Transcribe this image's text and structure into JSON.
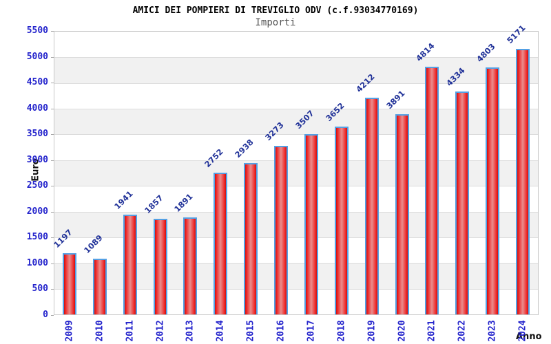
{
  "chart_data": {
    "type": "bar",
    "title": "AMICI DEI POMPIERI DI TREVIGLIO ODV (c.f.93034770169)",
    "subtitle": "Importi",
    "ylabel": "Euro",
    "xlabel": "Anno",
    "categories": [
      "2009",
      "2010",
      "2011",
      "2012",
      "2013",
      "2014",
      "2015",
      "2016",
      "2017",
      "2018",
      "2019",
      "2020",
      "2021",
      "2022",
      "2023",
      "2024"
    ],
    "values": [
      1197,
      1089,
      1941,
      1857,
      1891,
      2752,
      2938,
      3273,
      3507,
      3652,
      4212,
      3891,
      4814,
      4334,
      4803,
      5171
    ],
    "yticks": [
      0,
      500,
      1000,
      1500,
      2000,
      2500,
      3000,
      3500,
      4000,
      4500,
      5000,
      5500
    ],
    "ylim": [
      0,
      5500
    ],
    "grid": "horizontal-alternating-bands",
    "legend_position": "none",
    "value_labels_rotation_deg": -45,
    "xtick_rotation_deg": -90,
    "colors": {
      "bar_edge_red": "#c81212",
      "bar_bright_red": "#ee2424",
      "bar_center_light": "#ea8e8e",
      "bar_border_blue": "#54a0e4",
      "axis_tick_label": "#2424cc",
      "value_label": "#223399",
      "band_gray": "#f1f1f1",
      "grid_line": "#dcdcdc",
      "frame_border": "#c6c6c6",
      "title_color": "#000000",
      "subtitle_color": "#555555"
    }
  }
}
